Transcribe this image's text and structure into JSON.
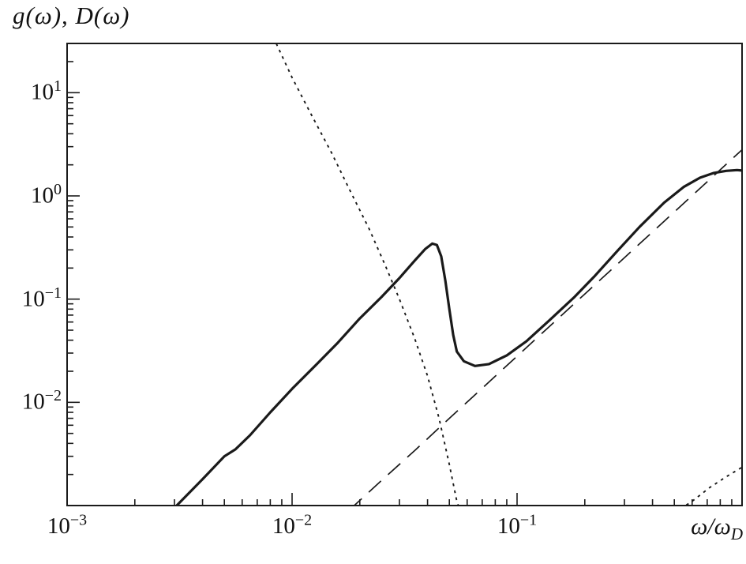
{
  "title": "g(ω), D(ω)",
  "chart_data": {
    "type": "line",
    "title": "g(ω), D(ω)",
    "xlabel": "ω/ω_D",
    "ylabel": "g(ω), D(ω)",
    "x_scale": "log",
    "y_scale": "log",
    "xlim": [
      0.001,
      1.0
    ],
    "ylim": [
      0.001,
      30
    ],
    "grid": false,
    "legend": "none",
    "line_color": "#1a1a1a",
    "x_axis": {
      "label_main": "ω/ω",
      "label_sub": "D",
      "ticks": [
        {
          "base": "10",
          "exp": "−3",
          "log": -3
        },
        {
          "base": "10",
          "exp": "−2",
          "log": -2
        },
        {
          "base": "10",
          "exp": "−1",
          "log": -1
        }
      ]
    },
    "y_axis": {
      "ticks": [
        {
          "base": "10",
          "exp": "1",
          "log": 1
        },
        {
          "base": "10",
          "exp": "0",
          "log": 0
        },
        {
          "base": "10",
          "exp": "−1",
          "log": -1
        },
        {
          "base": "10",
          "exp": "−2",
          "log": -2
        }
      ]
    },
    "series": [
      {
        "name": "solid-curve",
        "line_style": "solid",
        "points": [
          [
            0.003,
            0.00095
          ],
          [
            0.004,
            0.0018
          ],
          [
            0.005,
            0.003
          ],
          [
            0.0056,
            0.0035
          ],
          [
            0.0065,
            0.0048
          ],
          [
            0.008,
            0.008
          ],
          [
            0.01,
            0.0135
          ],
          [
            0.013,
            0.024
          ],
          [
            0.016,
            0.038
          ],
          [
            0.02,
            0.065
          ],
          [
            0.025,
            0.105
          ],
          [
            0.03,
            0.16
          ],
          [
            0.035,
            0.235
          ],
          [
            0.039,
            0.305
          ],
          [
            0.042,
            0.345
          ],
          [
            0.044,
            0.335
          ],
          [
            0.046,
            0.26
          ],
          [
            0.048,
            0.15
          ],
          [
            0.05,
            0.08
          ],
          [
            0.052,
            0.045
          ],
          [
            0.054,
            0.031
          ],
          [
            0.058,
            0.025
          ],
          [
            0.065,
            0.0225
          ],
          [
            0.075,
            0.0235
          ],
          [
            0.09,
            0.0285
          ],
          [
            0.11,
            0.039
          ],
          [
            0.14,
            0.063
          ],
          [
            0.18,
            0.105
          ],
          [
            0.22,
            0.165
          ],
          [
            0.28,
            0.295
          ],
          [
            0.35,
            0.5
          ],
          [
            0.45,
            0.86
          ],
          [
            0.55,
            1.22
          ],
          [
            0.65,
            1.5
          ],
          [
            0.75,
            1.67
          ],
          [
            0.85,
            1.75
          ],
          [
            0.95,
            1.78
          ],
          [
            1.0,
            1.76
          ]
        ]
      },
      {
        "name": "long-dashed-curve",
        "line_style": "long-dash",
        "points": [
          [
            0.018,
            0.00091
          ],
          [
            0.025,
            0.00175
          ],
          [
            0.035,
            0.0034
          ],
          [
            0.05,
            0.007
          ],
          [
            0.07,
            0.0137
          ],
          [
            0.1,
            0.028
          ],
          [
            0.15,
            0.063
          ],
          [
            0.2,
            0.112
          ],
          [
            0.3,
            0.252
          ],
          [
            0.45,
            0.567
          ],
          [
            0.6,
            1.008
          ],
          [
            0.8,
            1.792
          ],
          [
            1.0,
            2.8
          ]
        ]
      },
      {
        "name": "short-dotted-curve-left",
        "line_style": "short-dot",
        "points": [
          [
            0.0085,
            30
          ],
          [
            0.01,
            14
          ],
          [
            0.012,
            6.5
          ],
          [
            0.015,
            2.6
          ],
          [
            0.018,
            1.15
          ],
          [
            0.022,
            0.48
          ],
          [
            0.026,
            0.21
          ],
          [
            0.03,
            0.1
          ],
          [
            0.035,
            0.042
          ],
          [
            0.04,
            0.018
          ],
          [
            0.045,
            0.007
          ],
          [
            0.05,
            0.0025
          ],
          [
            0.054,
            0.0011
          ],
          [
            0.056,
            0.00088
          ]
        ]
      },
      {
        "name": "short-dotted-curve-right",
        "line_style": "short-dot",
        "points": [
          [
            0.5,
            0.00085
          ],
          [
            0.6,
            0.0011
          ],
          [
            0.72,
            0.0015
          ],
          [
            0.85,
            0.0019
          ],
          [
            1.0,
            0.00235
          ]
        ]
      }
    ]
  }
}
